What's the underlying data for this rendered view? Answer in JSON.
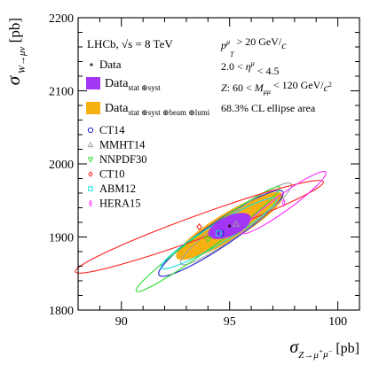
{
  "chart_data": {
    "type": "scatter",
    "title": "",
    "xlabel": "σ_{Z→μ+μ−} [pb]",
    "ylabel": "σ_{W→μν} [pb]",
    "xlim": [
      88,
      101
    ],
    "ylim": [
      1800,
      2200
    ],
    "x_ticks": [
      90,
      95,
      100
    ],
    "y_ticks": [
      1800,
      1900,
      2000,
      2100,
      2200
    ],
    "x_tick_labels": [
      "90",
      "95",
      "100"
    ],
    "y_tick_labels": [
      "1800",
      "1900",
      "2000",
      "2100",
      "2200"
    ],
    "grid": false,
    "legend_placement": "top-left",
    "lhcb_label": "LHCb, √s = 8 TeV",
    "annotations": [
      "p_T^μ > 20 GeV/c",
      "2.0 < η^μ < 4.5",
      "Z: 60 < M_μμ < 120 GeV/c²",
      "68.3% CL ellipse area"
    ],
    "data_point": {
      "name": "Data",
      "x": 95.0,
      "y": 1915.0
    },
    "data_ellipses": [
      {
        "name": "Data_stat ⊕ syst",
        "color": "#a335f4",
        "cx": 95.0,
        "cy": 1915.0,
        "a": 1.05,
        "b": 11,
        "tilt": 24
      },
      {
        "name": "Data_stat ⊕ syst ⊕ beam ⊕ lumi",
        "color": "#f6b012",
        "cx": 95.0,
        "cy": 1915.0,
        "a": 2.85,
        "b": 15,
        "tilt": 31
      }
    ],
    "series": [
      {
        "name": "CT14",
        "marker": "circle",
        "color": "#2020d0",
        "x": 94.6,
        "y": 1905.0,
        "a": 3.45,
        "b": 14,
        "tilt": 34
      },
      {
        "name": "MMHT14",
        "marker": "triangle-up",
        "color": "#a0a0a0",
        "x": 95.3,
        "y": 1918.0,
        "a": 3.15,
        "b": 12,
        "tilt": 36
      },
      {
        "name": "NNPDF30",
        "marker": "triangle-down",
        "color": "#30e030",
        "x": 94.0,
        "y": 1897.0,
        "a": 4.1,
        "b": 10,
        "tilt": 36
      },
      {
        "name": "CT10",
        "marker": "diamond",
        "color": "#ff2020",
        "x": 93.6,
        "y": 1914.0,
        "a": 6.1,
        "b": 13,
        "tilt": 20
      },
      {
        "name": "ABM12",
        "marker": "square",
        "color": "#10e0e0",
        "x": 94.5,
        "y": 1905.0,
        "a": 3.1,
        "b": 11,
        "tilt": 31
      },
      {
        "name": "HERA15",
        "marker": "star",
        "color": "#ff30ff",
        "x": 97.5,
        "y": 1947.0,
        "a": 2.4,
        "b": 9,
        "tilt": 36
      }
    ]
  }
}
